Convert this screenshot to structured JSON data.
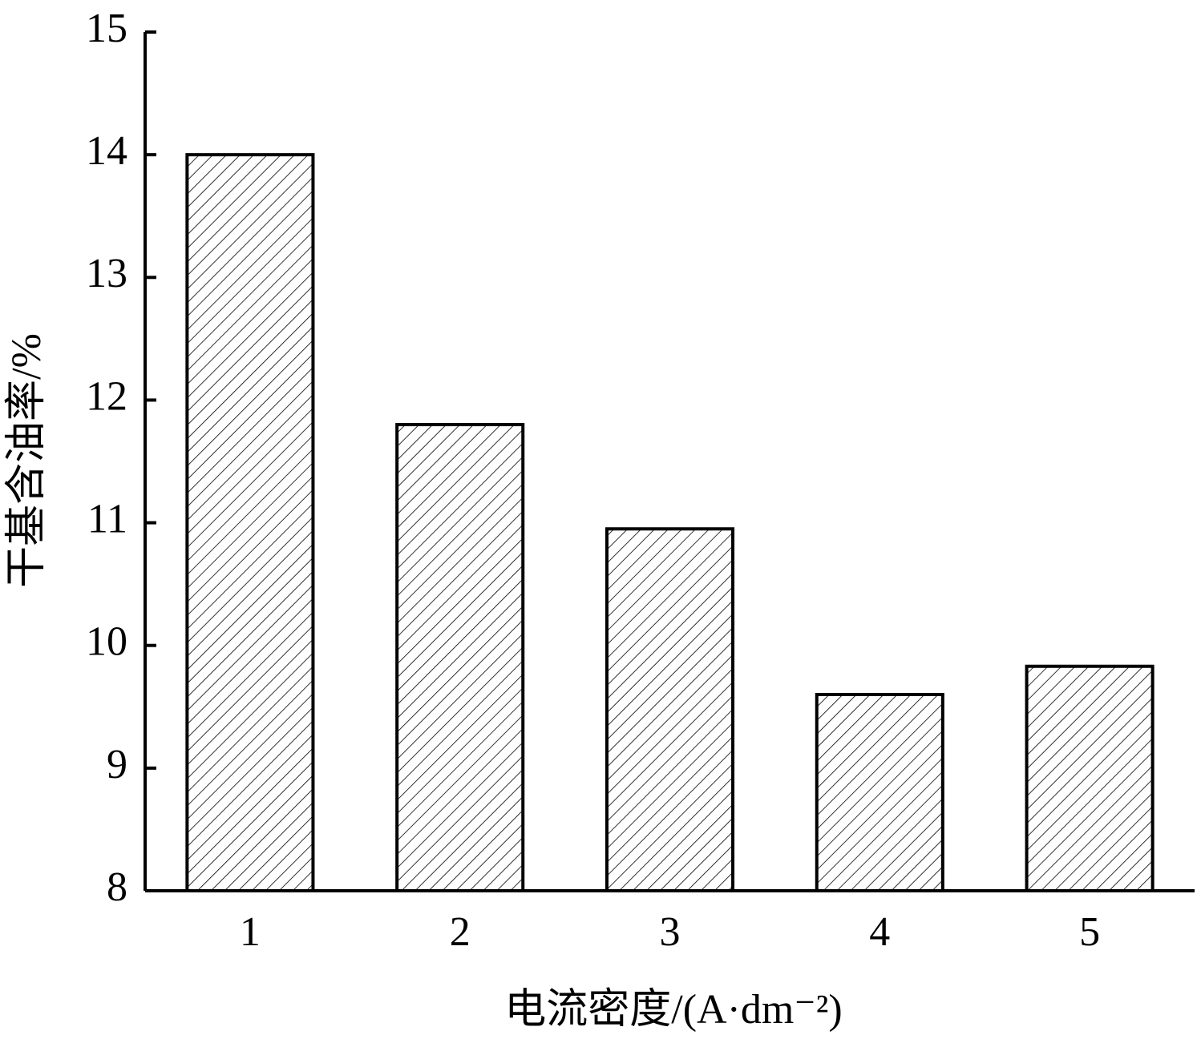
{
  "chart_data": {
    "type": "bar",
    "x_label": "电流密度/(A·dm⁻²)",
    "y_label": "干基含油率/%",
    "categories": [
      "1",
      "2",
      "3",
      "4",
      "5"
    ],
    "values": [
      14.0,
      11.8,
      10.95,
      9.6,
      9.83
    ],
    "color": "#000000",
    "ylim": [
      8,
      15
    ],
    "yticks": [
      8,
      9,
      10,
      11,
      12,
      13,
      14,
      15
    ]
  }
}
